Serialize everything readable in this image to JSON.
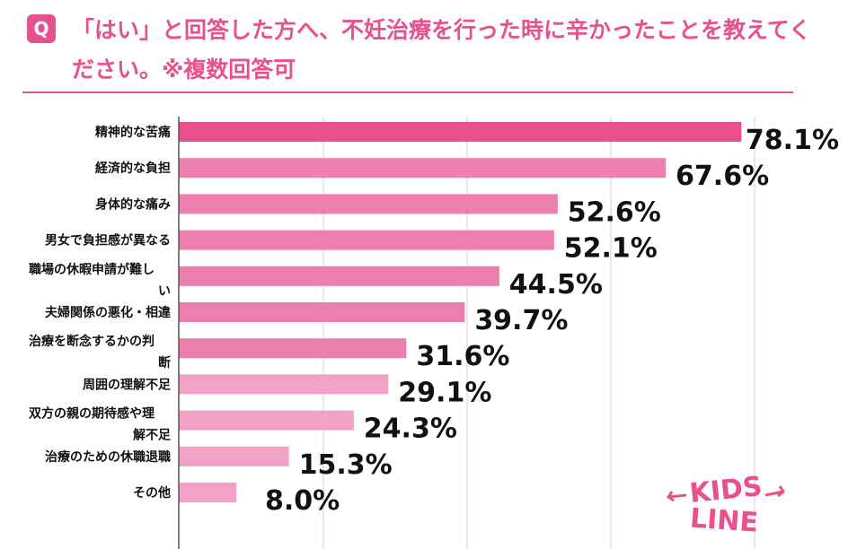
{
  "question": {
    "badge": "Q",
    "text": "「はい」と回答した方へ、不妊治療を行った時に辛かったことを教えてください。※複数回答可"
  },
  "colors": {
    "accent": "#e8508e",
    "bar_top": "#e8508e",
    "bar_rest": "#ec7fad",
    "bar_light": "#f0a3c4",
    "grid": "#cccccc"
  },
  "logo": {
    "line1": "KIDS",
    "line2": "LINE"
  },
  "chart_data": {
    "type": "bar",
    "orientation": "horizontal",
    "title": "「はい」と回答した方へ、不妊治療を行った時に辛かったことを教えてください。※複数回答可",
    "unit": "%",
    "xlim": [
      0,
      100
    ],
    "categories": [
      [
        "精神的な苦痛"
      ],
      [
        "経済的な負担"
      ],
      [
        "身体的な痛み"
      ],
      [
        "男女で負担感が異なる"
      ],
      [
        "職場の休暇申請が難し",
        "い"
      ],
      [
        "夫婦関係の悪化・相違"
      ],
      [
        "治療を断念するかの判",
        "断"
      ],
      [
        "周囲の理解不足"
      ],
      [
        "双方の親の期待感や理",
        "解不足"
      ],
      [
        "治療のための休職退職"
      ],
      [
        "その他"
      ]
    ],
    "values": [
      78.1,
      67.6,
      52.6,
      52.1,
      44.5,
      39.7,
      31.6,
      29.1,
      24.3,
      15.3,
      8.0
    ],
    "value_labels": [
      "78.1%",
      "67.6%",
      "52.6%",
      "52.1%",
      "44.5%",
      "39.7%",
      "31.6%",
      "29.1%",
      "24.3%",
      "15.3%",
      "8.0%"
    ]
  }
}
